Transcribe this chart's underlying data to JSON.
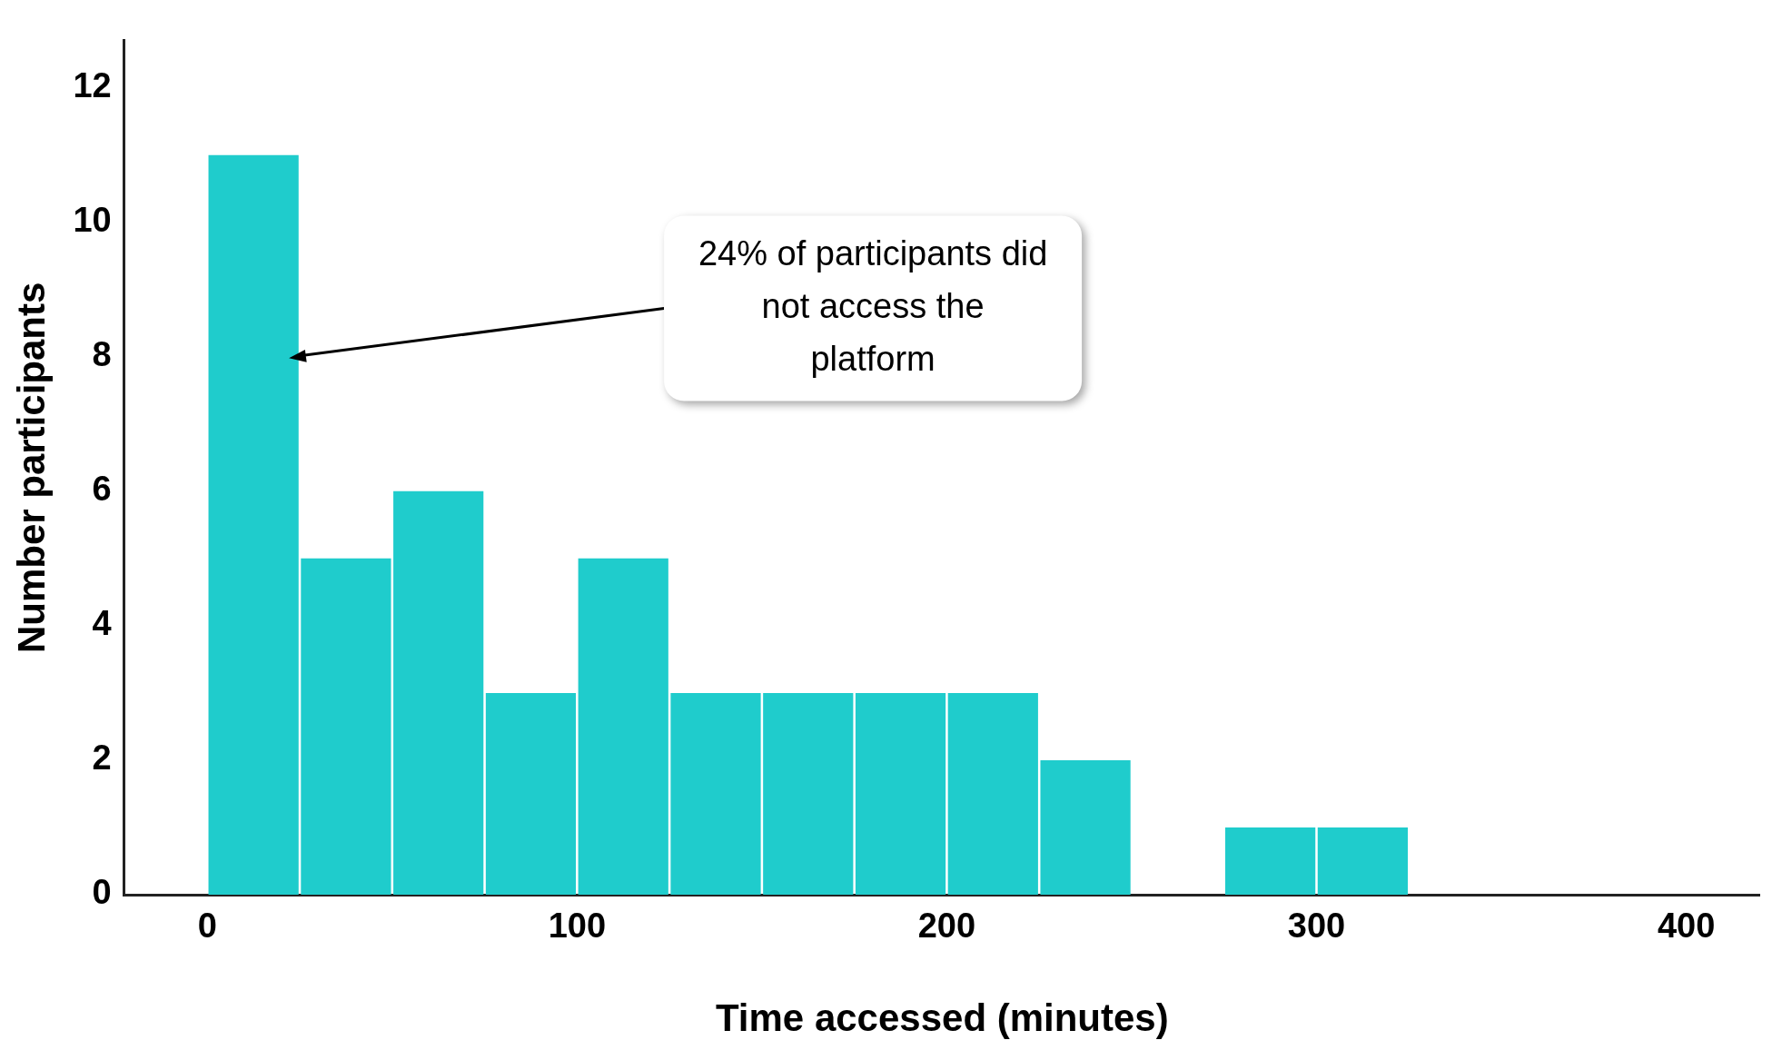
{
  "chart_data": {
    "type": "histogram",
    "xlabel": "Time accessed (minutes)",
    "ylabel": "Number participants",
    "bins": [
      0,
      25,
      50,
      75,
      100,
      125,
      150,
      175,
      200,
      225,
      250,
      275,
      300,
      325
    ],
    "values": [
      11,
      5,
      6,
      3,
      5,
      3,
      3,
      3,
      3,
      2,
      0,
      1,
      1
    ],
    "color": "#1fcccc",
    "xlim": [
      -22.5,
      420
    ],
    "xticks": [
      0,
      100,
      200,
      300,
      400
    ],
    "ylim": [
      0,
      12.7
    ],
    "yticks": [
      0,
      2,
      4,
      6,
      8,
      10,
      12
    ],
    "grid": false,
    "annotations": [
      {
        "text": "24% of participants did not access the platform",
        "x": 25,
        "y": 8
      }
    ]
  }
}
